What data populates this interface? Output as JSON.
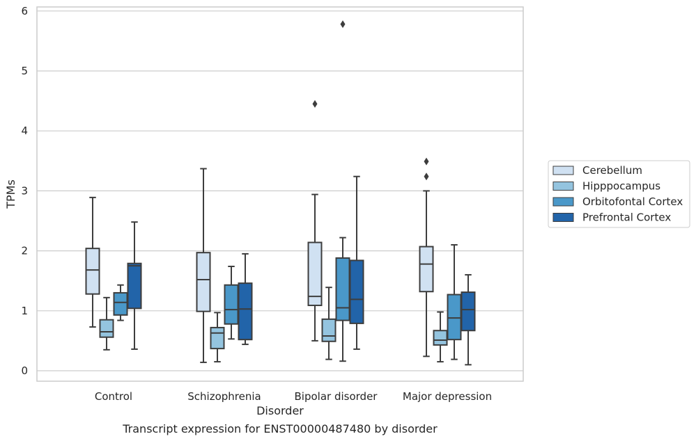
{
  "chart_data": {
    "type": "boxplot",
    "title": "",
    "caption": "Transcript expression for ENST00000487480 by disorder",
    "xlabel": "Disorder",
    "ylabel": "TPMs",
    "ylim": [
      -0.15,
      6.1
    ],
    "yticks": [
      0,
      1,
      2,
      3,
      4,
      5,
      6
    ],
    "grid": true,
    "legend_position": "right",
    "categories": [
      "Control",
      "Schizophrenia",
      "Bipolar disorder",
      "Major depression"
    ],
    "series": [
      {
        "name": "Cerebellum",
        "color": "#d0e1f2",
        "boxes": [
          {
            "whislo": 0.73,
            "q1": 1.28,
            "med": 1.68,
            "q3": 2.04,
            "whishi": 2.89,
            "fliers": []
          },
          {
            "whislo": 0.14,
            "q1": 0.99,
            "med": 1.52,
            "q3": 1.97,
            "whishi": 3.37,
            "fliers": []
          },
          {
            "whislo": 0.5,
            "q1": 1.09,
            "med": 1.24,
            "q3": 2.14,
            "whishi": 2.94,
            "fliers": [
              4.45
            ]
          },
          {
            "whislo": 0.24,
            "q1": 1.32,
            "med": 1.78,
            "q3": 2.07,
            "whishi": 3.0,
            "fliers": [
              3.24,
              3.49
            ]
          }
        ]
      },
      {
        "name": "Hipppocampus",
        "color": "#94c4df",
        "boxes": [
          {
            "whislo": 0.35,
            "q1": 0.56,
            "med": 0.65,
            "q3": 0.85,
            "whishi": 1.22,
            "fliers": []
          },
          {
            "whislo": 0.15,
            "q1": 0.37,
            "med": 0.63,
            "q3": 0.72,
            "whishi": 0.97,
            "fliers": []
          },
          {
            "whislo": 0.19,
            "q1": 0.49,
            "med": 0.58,
            "q3": 0.86,
            "whishi": 1.39,
            "fliers": []
          },
          {
            "whislo": 0.15,
            "q1": 0.43,
            "med": 0.51,
            "q3": 0.67,
            "whishi": 0.98,
            "fliers": []
          }
        ]
      },
      {
        "name": "Orbitofontal Cortex",
        "color": "#4a98c9",
        "boxes": [
          {
            "whislo": 0.84,
            "q1": 0.93,
            "med": 1.14,
            "q3": 1.3,
            "whishi": 1.43,
            "fliers": []
          },
          {
            "whislo": 0.53,
            "q1": 0.78,
            "med": 1.02,
            "q3": 1.43,
            "whishi": 1.74,
            "fliers": []
          },
          {
            "whislo": 0.16,
            "q1": 0.84,
            "med": 1.05,
            "q3": 1.88,
            "whishi": 2.22,
            "fliers": [
              5.78
            ]
          },
          {
            "whislo": 0.19,
            "q1": 0.52,
            "med": 0.88,
            "q3": 1.27,
            "whishi": 2.1,
            "fliers": []
          }
        ]
      },
      {
        "name": "Prefrontal Cortex",
        "color": "#2264a9",
        "boxes": [
          {
            "whislo": 0.36,
            "q1": 1.04,
            "med": 1.75,
            "q3": 1.79,
            "whishi": 2.48,
            "fliers": []
          },
          {
            "whislo": 0.44,
            "q1": 0.52,
            "med": 1.03,
            "q3": 1.46,
            "whishi": 1.95,
            "fliers": []
          },
          {
            "whislo": 0.36,
            "q1": 0.79,
            "med": 1.19,
            "q3": 1.84,
            "whishi": 3.24,
            "fliers": []
          },
          {
            "whislo": 0.1,
            "q1": 0.67,
            "med": 1.02,
            "q3": 1.31,
            "whishi": 1.6,
            "fliers": []
          }
        ]
      }
    ]
  }
}
